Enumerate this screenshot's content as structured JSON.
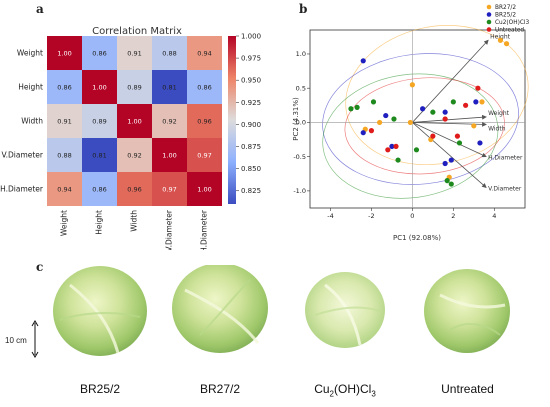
{
  "panel_labels": {
    "a": "a",
    "b": "b",
    "c": "c"
  },
  "photo_captions": [
    {
      "label": "BR25/2"
    },
    {
      "label": "BR27/2"
    },
    {
      "label_main": "Cu",
      "label_sub1": "2",
      "label_mid": "(OH)Cl",
      "label_sub2": "3"
    },
    {
      "label": "Untreated"
    }
  ],
  "scale_bar": {
    "label": "10 cm"
  },
  "colors": {
    "BR27/2": "#f5a623",
    "BR25/2": "#1f1fbf",
    "Cu2(OH)Cl3": "#1e8a1e",
    "Untreated": "#e01b1b",
    "heat_high": "#b40426",
    "heat_low": "#3b4cc0"
  },
  "chart_data": [
    {
      "type": "heatmap",
      "title": "Correlation Matrix",
      "rows": [
        "Weight",
        "Height",
        "Width",
        "V.Diameter",
        "H.Diameter"
      ],
      "cols": [
        "Weight",
        "Height",
        "Width",
        "V.Diameter",
        "H.Diameter"
      ],
      "values": [
        [
          1.0,
          0.86,
          0.91,
          0.88,
          0.94
        ],
        [
          0.86,
          1.0,
          0.89,
          0.81,
          0.86
        ],
        [
          0.91,
          0.89,
          1.0,
          0.92,
          0.96
        ],
        [
          0.88,
          0.81,
          0.92,
          1.0,
          0.97
        ],
        [
          0.94,
          0.86,
          0.96,
          0.97,
          1.0
        ]
      ],
      "colorbar": {
        "ticks": [
          "1.000",
          "0.975",
          "0.950",
          "0.925",
          "0.900",
          "0.875",
          "0.850",
          "0.825"
        ],
        "range": [
          0.81,
          1.0
        ]
      }
    },
    {
      "type": "scatter",
      "xlabel": "PC1 (92.08%)",
      "ylabel": "PC2 (4.31%)",
      "xlim": [
        -5,
        5.5
      ],
      "ylim": [
        -1.25,
        1.35
      ],
      "xticks": [
        "-4",
        "-2",
        "0",
        "2",
        "4"
      ],
      "xtick_values": [
        -4,
        -2,
        0,
        2,
        4
      ],
      "yticks": [
        "1.0",
        "0.5",
        "0.0",
        "-0.5",
        "-1.0"
      ],
      "ytick_values": [
        1.0,
        0.5,
        0.0,
        -0.5,
        -1.0
      ],
      "legend": [
        "BR27/2",
        "BR25/2",
        "Cu2(OH)Cl3",
        "Untreated"
      ],
      "legend_placement": "top-right",
      "series": [
        {
          "name": "BR27/2",
          "points": [
            [
              4.6,
              1.15
            ],
            [
              4.3,
              1.2
            ],
            [
              -0.1,
              0.0
            ],
            [
              -1.6,
              0.0
            ],
            [
              -2.3,
              -0.1
            ],
            [
              1.8,
              -0.8
            ],
            [
              0.0,
              0.55
            ],
            [
              3.4,
              0.3
            ],
            [
              3.0,
              -0.05
            ],
            [
              0.9,
              -0.25
            ]
          ]
        },
        {
          "name": "BR25/2",
          "points": [
            [
              -2.4,
              0.9
            ],
            [
              1.6,
              0.15
            ],
            [
              -2.4,
              -0.15
            ],
            [
              3.1,
              0.3
            ],
            [
              1.6,
              -0.6
            ],
            [
              3.3,
              -0.3
            ],
            [
              -1.0,
              -0.35
            ],
            [
              0.5,
              0.2
            ],
            [
              1.9,
              -0.55
            ],
            [
              -1.3,
              0.1
            ]
          ]
        },
        {
          "name": "Cu2(OH)Cl3",
          "points": [
            [
              -3.0,
              0.2
            ],
            [
              -2.7,
              0.22
            ],
            [
              -0.9,
              0.05
            ],
            [
              -1.9,
              0.3
            ],
            [
              1.0,
              0.15
            ],
            [
              0.2,
              -0.4
            ],
            [
              1.7,
              -0.85
            ],
            [
              2.0,
              0.3
            ],
            [
              -0.7,
              -0.55
            ],
            [
              2.3,
              -0.3
            ],
            [
              1.9,
              -0.9
            ]
          ]
        },
        {
          "name": "Untreated",
          "points": [
            [
              -1.2,
              -0.4
            ],
            [
              -2.0,
              -0.12
            ],
            [
              3.2,
              0.5
            ],
            [
              1.6,
              0.05
            ],
            [
              -0.8,
              -0.35
            ],
            [
              2.6,
              0.25
            ],
            [
              1.0,
              -0.2
            ],
            [
              2.2,
              -0.2
            ]
          ]
        }
      ],
      "loadings": [
        {
          "label": "Height",
          "x": 3.7,
          "y": 1.2
        },
        {
          "label": "Weight",
          "x": 3.6,
          "y": 0.08
        },
        {
          "label": "Width",
          "x": 3.6,
          "y": -0.03
        },
        {
          "label": "H.Diameter",
          "x": 3.6,
          "y": -0.5
        },
        {
          "label": "V.Diameter",
          "x": 3.6,
          "y": -0.95
        }
      ]
    }
  ]
}
